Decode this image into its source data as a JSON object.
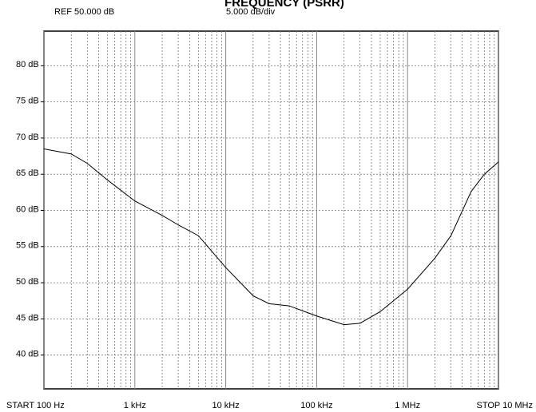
{
  "chart_data": {
    "type": "line",
    "title": "FREQUENCY (PSRR)",
    "annotations": [
      "REF 50.000 dB",
      "5.000 dB/div"
    ],
    "log_x": true,
    "grid": true,
    "xlim": [
      100,
      10000000
    ],
    "ylim": [
      35,
      85
    ],
    "xticks": [
      {
        "value": 100,
        "label": "START 100 Hz"
      },
      {
        "value": 1000,
        "label": "1 kHz"
      },
      {
        "value": 10000,
        "label": "10 kHz"
      },
      {
        "value": 100000,
        "label": "100 kHz"
      },
      {
        "value": 1000000,
        "label": "1 MHz"
      },
      {
        "value": 10000000,
        "label": "STOP 10 MHz"
      }
    ],
    "xminor": [
      200,
      300,
      400,
      500,
      600,
      700,
      800,
      900,
      2000,
      3000,
      4000,
      5000,
      6000,
      7000,
      8000,
      9000,
      20000,
      30000,
      40000,
      50000,
      60000,
      70000,
      80000,
      90000,
      200000,
      300000,
      400000,
      500000,
      600000,
      700000,
      800000,
      900000,
      2000000,
      3000000,
      4000000,
      5000000,
      6000000,
      7000000,
      8000000,
      9000000
    ],
    "yticks": [
      {
        "value": 40,
        "label": "40 dB"
      },
      {
        "value": 45,
        "label": "45 dB"
      },
      {
        "value": 50,
        "label": "50 dB"
      },
      {
        "value": 55,
        "label": "55 dB"
      },
      {
        "value": 60,
        "label": "60 dB"
      },
      {
        "value": 65,
        "label": "65 dB"
      },
      {
        "value": 70,
        "label": "70 dB"
      },
      {
        "value": 75,
        "label": "75 dB"
      },
      {
        "value": 80,
        "label": "80 dB"
      }
    ],
    "x": [
      100,
      200,
      300,
      500,
      1000,
      2000,
      3000,
      5000,
      10000,
      20000,
      30000,
      50000,
      100000,
      200000,
      300000,
      500000,
      1000000,
      2000000,
      3000000,
      5000000,
      7000000,
      10000000
    ],
    "series": [
      {
        "color": "#000000",
        "values": [
          68.5,
          67.8,
          66.5,
          64.2,
          61.3,
          59.3,
          58,
          56.5,
          52.1,
          48.2,
          47.1,
          46.8,
          45.4,
          44.2,
          44.4,
          46,
          49.1,
          53.4,
          56.5,
          62.6,
          65,
          66.7
        ]
      }
    ]
  }
}
